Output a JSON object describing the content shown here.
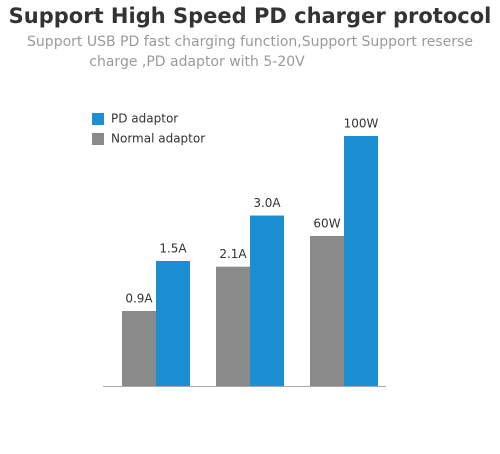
{
  "chart_data": {
    "type": "grouped-bar",
    "title": "Support High Speed PD charger protocol",
    "subtitle": [
      "Support USB PD fast charging function,Support Support reserse",
      "charge ,PD adaptor with 5-20V"
    ],
    "ylim": [
      [
        0,
        3
      ],
      [
        0,
        4.4
      ],
      [
        0,
        100
      ]
    ],
    "series": [
      {
        "name": "PD adaptor",
        "color": "#1c8fd2",
        "values": [
          1.5,
          3.0,
          100
        ],
        "value_labels": [
          "1.5A",
          "3.0A",
          "100W"
        ]
      },
      {
        "name": "Normal adaptor",
        "color": "#8a8a8a",
        "values": [
          0.9,
          2.1,
          60
        ],
        "value_labels": [
          "0.9A",
          "2.1A",
          "60W"
        ]
      }
    ]
  }
}
